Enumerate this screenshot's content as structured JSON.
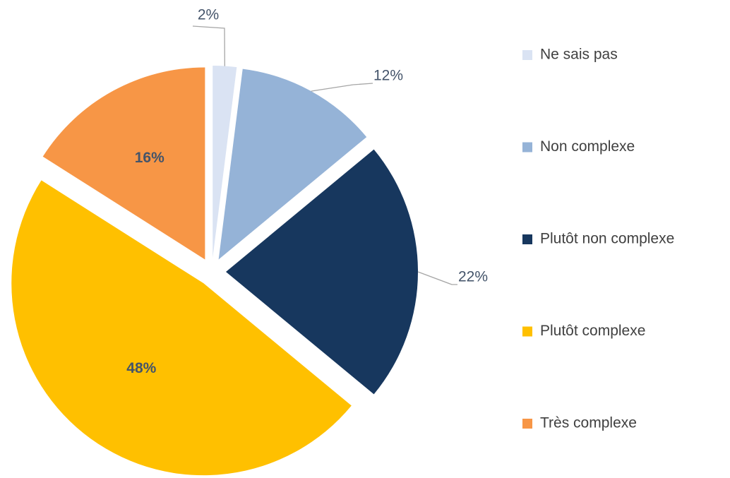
{
  "chart_data": {
    "type": "pie",
    "categories": [
      "Ne sais pas",
      "Non complexe",
      "Plutôt non complexe",
      "Plutôt complexe",
      "Très complexe"
    ],
    "values": [
      2,
      12,
      22,
      48,
      16
    ],
    "value_labels": [
      "2%",
      "12%",
      "22%",
      "48%",
      "16%"
    ],
    "colors": [
      "#dae3f3",
      "#95b3d7",
      "#17375e",
      "#ffc000",
      "#f79646"
    ],
    "legend": "right"
  }
}
